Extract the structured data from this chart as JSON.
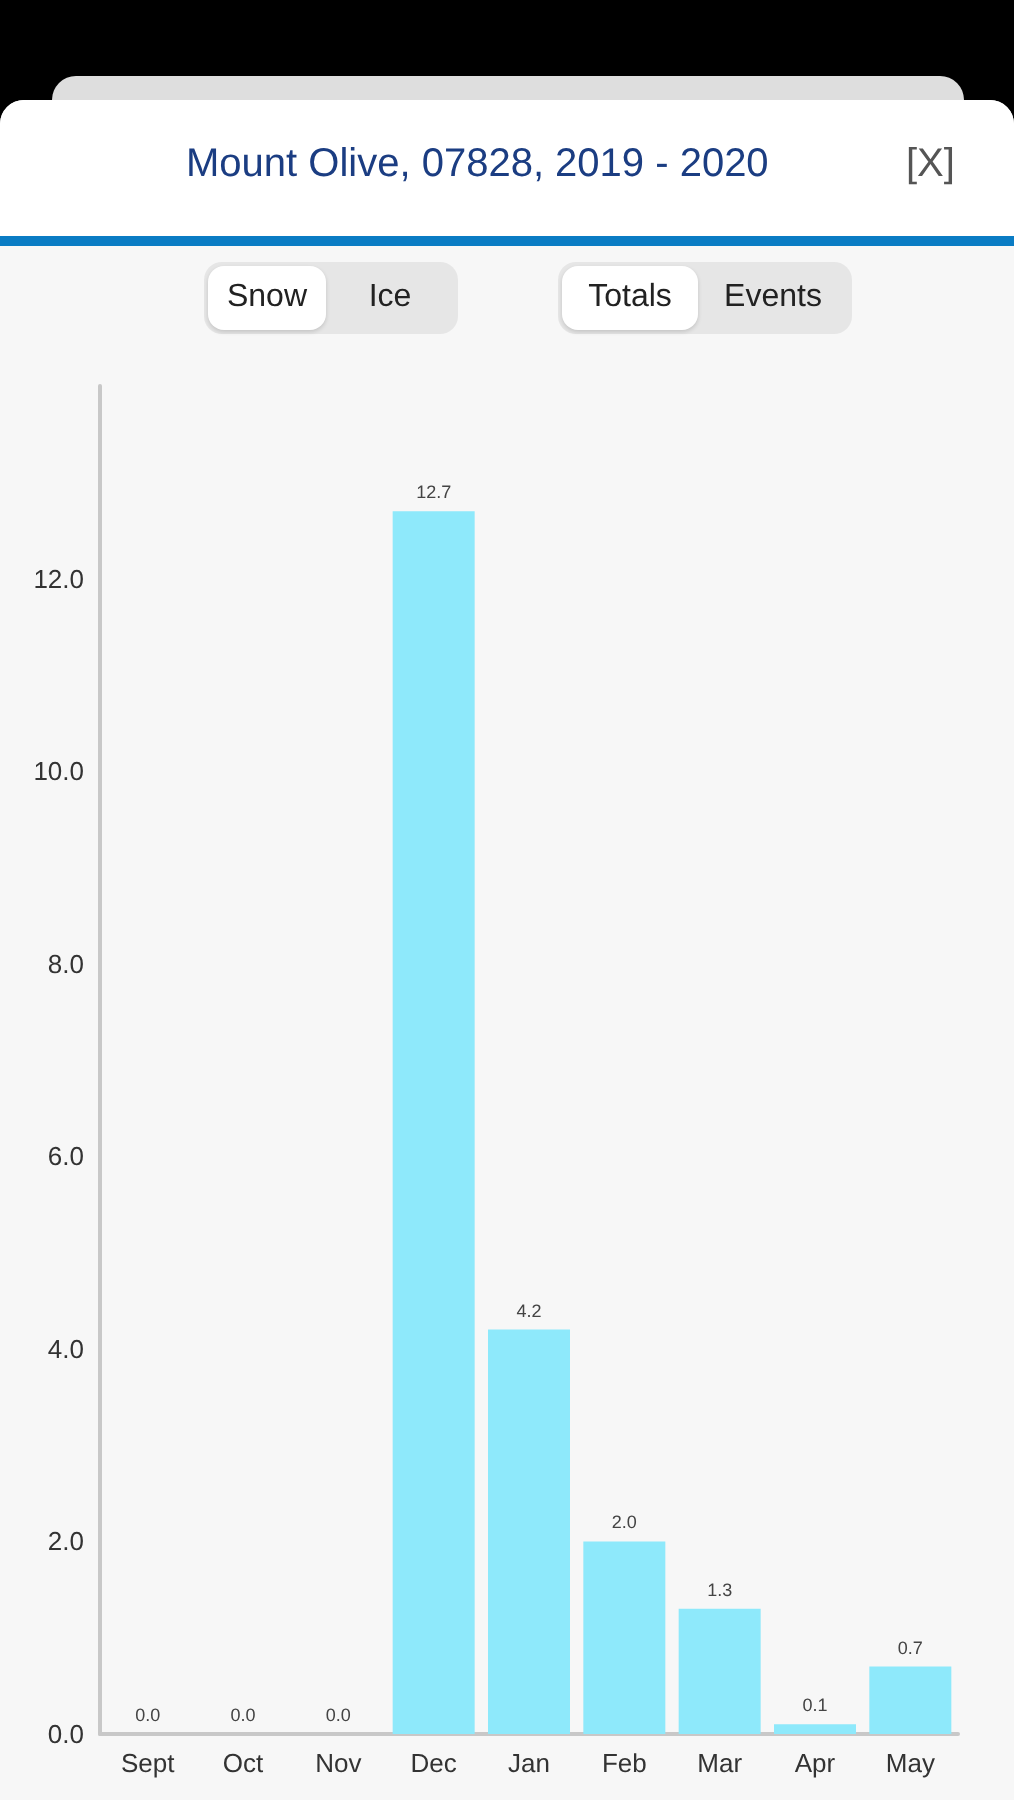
{
  "chart_data": {
    "type": "bar",
    "title": "Mount Olive, 07828, 2019 - 2020",
    "annotations": [
      "Snow",
      "Ice",
      "Totals",
      "Events",
      "[X]"
    ],
    "categories": [
      "Sept",
      "Oct",
      "Nov",
      "Dec",
      "Jan",
      "Feb",
      "Mar",
      "Apr",
      "May"
    ],
    "values": [
      0,
      0,
      0,
      12.7,
      4.2,
      2.0,
      1.3,
      0.1,
      0.7
    ],
    "value_labels": [
      "0.0",
      "0.0",
      "0.0",
      "12.7",
      "4.2",
      "2.0",
      "1.3",
      "0.1",
      "0.7"
    ],
    "color": "#8ee9fb",
    "ylim": [
      0,
      14
    ],
    "yticks": [
      {
        "value": 0,
        "label": "0.0"
      },
      {
        "value": 2,
        "label": "2.0"
      },
      {
        "value": 4,
        "label": "4.0"
      },
      {
        "value": 6,
        "label": "6.0"
      },
      {
        "value": 8,
        "label": "8.0"
      },
      {
        "value": 10,
        "label": "10.0"
      },
      {
        "value": 12,
        "label": "12.0"
      }
    ],
    "grid": false
  }
}
